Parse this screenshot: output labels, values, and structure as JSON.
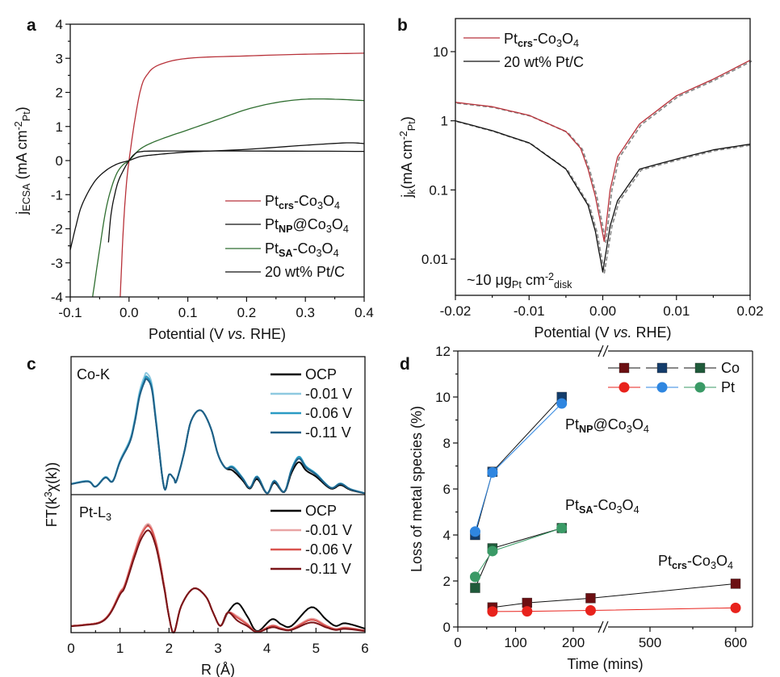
{
  "chart_data": [
    {
      "id": "a",
      "type": "line",
      "panel_label": "a",
      "xlabel": [
        [
          "Potential (V ",
          ""
        ],
        [
          "vs.",
          "i"
        ],
        [
          " RHE)",
          ""
        ]
      ],
      "ylabel": [
        [
          "j",
          ""
        ],
        [
          "ECSA",
          "sub"
        ],
        [
          " (mA cm",
          ""
        ],
        [
          "-2",
          "sup"
        ],
        [
          "Pt",
          "sub"
        ],
        [
          ")",
          ""
        ]
      ],
      "xlim": [
        -0.1,
        0.4
      ],
      "ylim": [
        -4,
        4
      ],
      "xticks": [
        "-0.1",
        "0.0",
        "0.1",
        "0.2",
        "0.3",
        "0.4"
      ],
      "yticks": [
        "-4",
        "-3",
        "-2",
        "-1",
        "0",
        "1",
        "2",
        "3",
        "4"
      ],
      "legend_position": "bottom-right",
      "series": [
        {
          "name": [
            [
              "Pt",
              ""
            ],
            [
              "crs",
              "sub-b"
            ],
            [
              "-Co",
              ""
            ],
            [
              "3",
              "sub"
            ],
            [
              "O",
              ""
            ],
            [
              "4",
              "sub"
            ]
          ],
          "color": "#b8323a",
          "x": [
            -0.015,
            -0.01,
            -0.005,
            0,
            0.01,
            0.02,
            0.03,
            0.05,
            0.1,
            0.2,
            0.3,
            0.4
          ],
          "y": [
            -4,
            -2.1,
            -0.8,
            0,
            1.2,
            2.1,
            2.5,
            2.8,
            3.0,
            3.07,
            3.12,
            3.15
          ]
        },
        {
          "name": [
            [
              "Pt",
              ""
            ],
            [
              "NP",
              "sub-b"
            ],
            [
              "@Co",
              ""
            ],
            [
              "3",
              "sub"
            ],
            [
              "O",
              ""
            ],
            [
              "4",
              "sub"
            ]
          ],
          "color": "#111111",
          "x": [
            -0.1,
            -0.09,
            -0.08,
            -0.06,
            -0.04,
            -0.02,
            0,
            0.02,
            0.05,
            0.1,
            0.2,
            0.3,
            0.37,
            0.4
          ],
          "y": [
            -2.62,
            -1.9,
            -1.3,
            -0.65,
            -0.3,
            -0.1,
            0,
            0.12,
            0.18,
            0.25,
            0.33,
            0.45,
            0.52,
            0.5
          ]
        },
        {
          "name": [
            [
              "Pt",
              ""
            ],
            [
              "SA",
              "sub-b"
            ],
            [
              "-Co",
              ""
            ],
            [
              "3",
              "sub"
            ],
            [
              "O",
              ""
            ],
            [
              "4",
              "sub"
            ]
          ],
          "color": "#2f6e30",
          "x": [
            -0.062,
            -0.05,
            -0.04,
            -0.03,
            -0.02,
            -0.01,
            0,
            0.02,
            0.05,
            0.1,
            0.15,
            0.2,
            0.25,
            0.3,
            0.35,
            0.4
          ],
          "y": [
            -4,
            -2.6,
            -1.5,
            -0.8,
            -0.35,
            -0.12,
            0,
            0.35,
            0.6,
            0.9,
            1.2,
            1.5,
            1.7,
            1.8,
            1.8,
            1.76
          ]
        },
        {
          "name": [
            [
              "20 wt% Pt/C",
              ""
            ]
          ],
          "color": "#111111",
          "x": [
            -0.035,
            -0.03,
            -0.02,
            -0.01,
            0,
            0.01,
            0.02,
            0.05,
            0.2,
            0.4
          ],
          "y": [
            -2.4,
            -1.5,
            -0.7,
            -0.3,
            0,
            0.2,
            0.26,
            0.28,
            0.28,
            0.27
          ]
        }
      ]
    },
    {
      "id": "b",
      "type": "line",
      "panel_label": "b",
      "yscale": "log",
      "xlabel": [
        [
          "Potential (V ",
          ""
        ],
        [
          "vs.",
          "i"
        ],
        [
          " RHE)",
          ""
        ]
      ],
      "ylabel": [
        [
          "j",
          ""
        ],
        [
          "k",
          "sub"
        ],
        [
          "(mA cm",
          ""
        ],
        [
          "-2",
          "sup"
        ],
        [
          "Pt",
          "sub"
        ],
        [
          ")",
          ""
        ]
      ],
      "xlim": [
        -0.02,
        0.02
      ],
      "ylim": [
        0.003,
        30
      ],
      "xticks": [
        "-0.02",
        "-0.01",
        "0.00",
        "0.01",
        "0.02"
      ],
      "yticks": [
        "0.01",
        "0.1",
        "1",
        "10"
      ],
      "annotation": [
        [
          "~10 μg",
          ""
        ],
        [
          "Pt",
          "sub"
        ],
        [
          " cm",
          ""
        ],
        [
          "-2",
          "sup"
        ],
        [
          "disk",
          "sub"
        ]
      ],
      "legend_position": "top-left",
      "fit_color": "#8a8a8a",
      "series": [
        {
          "name": [
            [
              "Pt",
              ""
            ],
            [
              "crs",
              "sub-b"
            ],
            [
              "-Co",
              ""
            ],
            [
              "3",
              "sub"
            ],
            [
              "O",
              ""
            ],
            [
              "4",
              "sub"
            ]
          ],
          "color": "#b8323a",
          "x": [
            -0.02,
            -0.015,
            -0.01,
            -0.005,
            -0.003,
            -0.002,
            -0.001,
            0.0002,
            0.001,
            0.002,
            0.005,
            0.01,
            0.015,
            0.02
          ],
          "y": [
            1.85,
            1.6,
            1.2,
            0.7,
            0.4,
            0.2,
            0.08,
            0.018,
            0.1,
            0.3,
            0.9,
            2.3,
            4.0,
            7.5
          ]
        },
        {
          "name": [
            [
              "20 wt% Pt/C",
              ""
            ]
          ],
          "color": "#111111",
          "x": [
            -0.02,
            -0.015,
            -0.01,
            -0.005,
            -0.002,
            -0.001,
            0,
            0.001,
            0.002,
            0.005,
            0.01,
            0.015,
            0.02
          ],
          "y": [
            1.0,
            0.72,
            0.48,
            0.2,
            0.06,
            0.025,
            0.0065,
            0.03,
            0.07,
            0.2,
            0.28,
            0.38,
            0.46
          ]
        }
      ]
    },
    {
      "id": "c",
      "type": "line",
      "panel_label": "c",
      "xlabel": [
        [
          "R (Å)",
          ""
        ]
      ],
      "ylabel": [
        [
          "FT(k",
          ""
        ],
        [
          "3",
          "sup"
        ],
        [
          "χ(k))",
          ""
        ]
      ],
      "xlim": [
        0,
        6
      ],
      "xticks": [
        "0",
        "1",
        "2",
        "3",
        "4",
        "5",
        "6"
      ],
      "subpanels": [
        {
          "title": [
            [
              "Co-K",
              ""
            ]
          ],
          "base_x": [
            0,
            0.35,
            0.5,
            0.7,
            0.85,
            1.0,
            1.2,
            1.3,
            1.4,
            1.5,
            1.55,
            1.65,
            1.75,
            1.9,
            2.0,
            2.1,
            2.15,
            2.3,
            2.45,
            2.65,
            2.85,
            3.0,
            3.15,
            3.3,
            3.5,
            3.65,
            3.8,
            4.0,
            4.15,
            4.35,
            4.5,
            4.65,
            4.8,
            5.0,
            5.3,
            5.5,
            5.7,
            6.0
          ],
          "base_y": [
            0.08,
            0.1,
            0.06,
            0.13,
            0.1,
            0.25,
            0.4,
            0.55,
            0.75,
            0.86,
            0.88,
            0.8,
            0.5,
            0.05,
            0.15,
            0.12,
            0.1,
            0.3,
            0.55,
            0.63,
            0.5,
            0.3,
            0.2,
            0.2,
            0.12,
            0.05,
            0.13,
            0.01,
            0.1,
            0.02,
            0.18,
            0.27,
            0.2,
            0.15,
            0.05,
            0.08,
            0.04,
            0.01
          ],
          "series": [
            {
              "name": "OCP",
              "color": "#000000",
              "peak_scale": 1.0,
              "tail_scale": 0.9
            },
            {
              "name": "-0.01 V",
              "color": "#8ec9e0",
              "peak_scale": 1.03,
              "tail_scale": 1.05
            },
            {
              "name": "-0.06 V",
              "color": "#2a9bc4",
              "peak_scale": 1.0,
              "tail_scale": 1.05
            },
            {
              "name": "-0.11 V",
              "color": "#1f5f86",
              "peak_scale": 0.98,
              "tail_scale": 1.0
            }
          ]
        },
        {
          "title": [
            [
              "Pt-L",
              ""
            ],
            [
              "3",
              "sub"
            ]
          ],
          "base_x": [
            0,
            0.3,
            0.6,
            0.8,
            1.0,
            1.1,
            1.3,
            1.45,
            1.6,
            1.75,
            1.9,
            2.0,
            2.1,
            2.25,
            2.5,
            2.75,
            2.9,
            3.05,
            3.2,
            3.4,
            3.6,
            3.8,
            4.1,
            4.3,
            4.5,
            4.9,
            5.2,
            5.4,
            5.6,
            6.0
          ],
          "base_y": [
            0.05,
            0.06,
            0.08,
            0.15,
            0.3,
            0.36,
            0.6,
            0.75,
            0.8,
            0.65,
            0.35,
            0.12,
            0.0,
            0.2,
            0.33,
            0.27,
            0.15,
            0.05,
            0.15,
            0.22,
            0.12,
            0.01,
            0.1,
            0.06,
            0.05,
            0.19,
            0.1,
            0.05,
            0.07,
            0.03
          ],
          "series": [
            {
              "name": "OCP",
              "color": "#000000",
              "peak_scale": 1.0,
              "tail_scale": 1.0
            },
            {
              "name": "-0.01 V",
              "color": "#e8a3a3",
              "peak_scale": 1.01,
              "tail_scale": 0.55
            },
            {
              "name": "-0.06 V",
              "color": "#d9534f",
              "peak_scale": 0.99,
              "tail_scale": 0.5
            },
            {
              "name": "-0.11 V",
              "color": "#7a1418",
              "peak_scale": 0.95,
              "tail_scale": 0.4
            }
          ]
        }
      ]
    },
    {
      "id": "d",
      "type": "scatter-line",
      "panel_label": "d",
      "xlabel": [
        [
          "Time (mins)",
          ""
        ]
      ],
      "ylabel": [
        [
          "Loss of metal species (%)",
          ""
        ]
      ],
      "ylim": [
        0,
        12
      ],
      "yticks": [
        "0",
        "2",
        "4",
        "6",
        "8",
        "10",
        "12"
      ],
      "xticks": [
        {
          "v": 0,
          "label": "0"
        },
        {
          "v": 100,
          "label": "100"
        },
        {
          "v": 200,
          "label": "200"
        },
        {
          "v": 500,
          "label": "500"
        },
        {
          "v": 600,
          "label": "600"
        }
      ],
      "x_break": [
        250,
        450
      ],
      "legend": [
        {
          "label": "Co",
          "marker": "square",
          "colors": [
            "#6b0f12",
            "#143d6b",
            "#1f5a3a"
          ]
        },
        {
          "label": "Pt",
          "marker": "circle",
          "colors": [
            "#e8221c",
            "#2f86e0",
            "#3a9a66"
          ]
        }
      ],
      "groups": [
        {
          "label": [
            [
              "Pt",
              ""
            ],
            [
              "NP",
              "sub-b"
            ],
            [
              "@Co",
              ""
            ],
            [
              "3",
              "sub"
            ],
            [
              "O",
              ""
            ],
            [
              "4",
              "sub"
            ]
          ],
          "series": [
            {
              "name": "Co",
              "marker": "square",
              "color": "#143d6b",
              "x": [
                30,
                60,
                180
              ],
              "y": [
                4.0,
                6.75,
                10.0
              ]
            },
            {
              "name": "Pt",
              "marker": "circle",
              "color": "#2f86e0",
              "x": [
                30,
                60,
                180
              ],
              "y": [
                4.15,
                6.72,
                9.72
              ]
            }
          ]
        },
        {
          "label": [
            [
              "Pt",
              ""
            ],
            [
              "SA",
              "sub-b"
            ],
            [
              "-Co",
              ""
            ],
            [
              "3",
              "sub"
            ],
            [
              "O",
              ""
            ],
            [
              "4",
              "sub"
            ]
          ],
          "series": [
            {
              "name": "Co",
              "marker": "square",
              "color": "#1f5a3a",
              "x": [
                30,
                60,
                180
              ],
              "y": [
                1.7,
                3.42,
                4.3
              ]
            },
            {
              "name": "Pt",
              "marker": "circle",
              "color": "#3a9a66",
              "x": [
                30,
                60,
                180
              ],
              "y": [
                2.18,
                3.3,
                4.3
              ]
            }
          ]
        },
        {
          "label": [
            [
              "Pt",
              ""
            ],
            [
              "crs",
              "sub-b"
            ],
            [
              "-Co",
              ""
            ],
            [
              "3",
              "sub"
            ],
            [
              "O",
              ""
            ],
            [
              "4",
              "sub"
            ]
          ],
          "series": [
            {
              "name": "Co",
              "marker": "square",
              "color": "#6b0f12",
              "x": [
                60,
                120,
                230,
                600
              ],
              "y": [
                0.85,
                1.05,
                1.25,
                1.88
              ]
            },
            {
              "name": "Pt",
              "marker": "circle",
              "color": "#e8221c",
              "x": [
                60,
                120,
                230,
                600
              ],
              "y": [
                0.67,
                0.68,
                0.72,
                0.83
              ]
            }
          ]
        }
      ]
    }
  ]
}
